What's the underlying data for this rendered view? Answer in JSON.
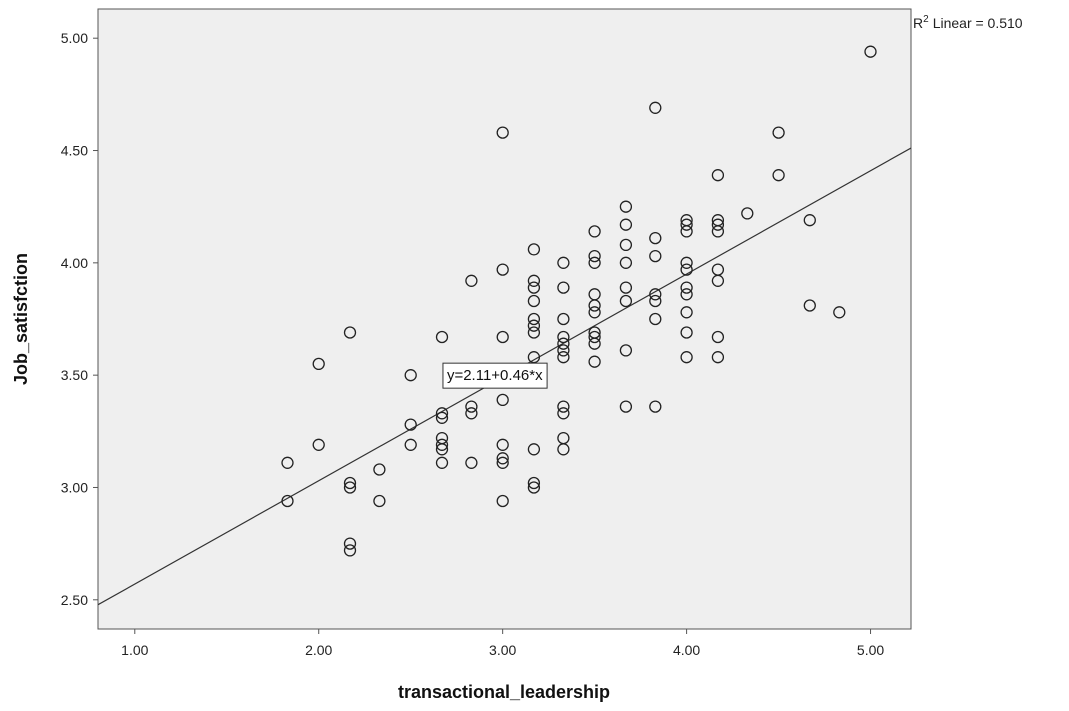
{
  "chart_data": {
    "type": "scatter",
    "title": "",
    "xlabel": "transactional_leadership",
    "ylabel": "Job_satisfction",
    "xlim": [
      0.8,
      5.22
    ],
    "ylim": [
      2.37,
      5.13
    ],
    "x_ticks": [
      1.0,
      2.0,
      3.0,
      4.0,
      5.0
    ],
    "x_tick_labels": [
      "1.00",
      "2.00",
      "3.00",
      "4.00",
      "5.00"
    ],
    "y_ticks": [
      2.5,
      3.0,
      3.5,
      4.0,
      4.5,
      5.0
    ],
    "y_tick_labels": [
      "2.50",
      "3.00",
      "3.50",
      "4.00",
      "4.50",
      "5.00"
    ],
    "grid": false,
    "legend": "none",
    "marker": "hollow-circle",
    "colors": {
      "plot_background": "#efefef",
      "marker": "#222222",
      "line": "#333333"
    },
    "fit_line": {
      "intercept": 2.11,
      "slope": 0.46,
      "equation_label": "y=2.11+0.46*x",
      "label_position": [
        2.67,
        3.5
      ]
    },
    "r_squared": {
      "sup": "2",
      "prefix": "R",
      "label": "Linear = 0.510"
    },
    "points": [
      [
        1.83,
        3.11
      ],
      [
        1.83,
        2.94
      ],
      [
        2.0,
        3.55
      ],
      [
        2.0,
        3.19
      ],
      [
        2.17,
        3.69
      ],
      [
        2.17,
        3.02
      ],
      [
        2.17,
        3.0
      ],
      [
        2.17,
        2.75
      ],
      [
        2.17,
        2.72
      ],
      [
        2.33,
        3.08
      ],
      [
        2.33,
        2.94
      ],
      [
        2.5,
        3.5
      ],
      [
        2.5,
        3.28
      ],
      [
        2.5,
        3.19
      ],
      [
        2.67,
        3.67
      ],
      [
        2.67,
        3.33
      ],
      [
        2.67,
        3.31
      ],
      [
        2.67,
        3.22
      ],
      [
        2.67,
        3.19
      ],
      [
        2.67,
        3.17
      ],
      [
        2.67,
        3.11
      ],
      [
        2.83,
        3.92
      ],
      [
        2.83,
        3.36
      ],
      [
        2.83,
        3.33
      ],
      [
        2.83,
        3.11
      ],
      [
        3.0,
        4.58
      ],
      [
        3.0,
        3.97
      ],
      [
        3.0,
        3.67
      ],
      [
        3.0,
        3.39
      ],
      [
        3.0,
        3.19
      ],
      [
        3.0,
        3.13
      ],
      [
        3.0,
        3.11
      ],
      [
        3.0,
        2.94
      ],
      [
        3.17,
        4.06
      ],
      [
        3.17,
        3.92
      ],
      [
        3.17,
        3.89
      ],
      [
        3.17,
        3.83
      ],
      [
        3.17,
        3.75
      ],
      [
        3.17,
        3.72
      ],
      [
        3.17,
        3.69
      ],
      [
        3.17,
        3.58
      ],
      [
        3.17,
        3.17
      ],
      [
        3.17,
        3.02
      ],
      [
        3.17,
        3.0
      ],
      [
        3.33,
        4.0
      ],
      [
        3.33,
        3.89
      ],
      [
        3.33,
        3.75
      ],
      [
        3.33,
        3.67
      ],
      [
        3.33,
        3.64
      ],
      [
        3.33,
        3.61
      ],
      [
        3.33,
        3.58
      ],
      [
        3.33,
        3.36
      ],
      [
        3.33,
        3.33
      ],
      [
        3.33,
        3.22
      ],
      [
        3.33,
        3.17
      ],
      [
        3.5,
        4.14
      ],
      [
        3.5,
        4.03
      ],
      [
        3.5,
        4.0
      ],
      [
        3.5,
        3.86
      ],
      [
        3.5,
        3.81
      ],
      [
        3.5,
        3.78
      ],
      [
        3.5,
        3.69
      ],
      [
        3.5,
        3.67
      ],
      [
        3.5,
        3.64
      ],
      [
        3.5,
        3.56
      ],
      [
        3.67,
        4.25
      ],
      [
        3.67,
        4.17
      ],
      [
        3.67,
        4.08
      ],
      [
        3.67,
        4.0
      ],
      [
        3.67,
        3.89
      ],
      [
        3.67,
        3.83
      ],
      [
        3.67,
        3.61
      ],
      [
        3.67,
        3.36
      ],
      [
        3.83,
        4.69
      ],
      [
        3.83,
        4.11
      ],
      [
        3.83,
        4.03
      ],
      [
        3.83,
        3.86
      ],
      [
        3.83,
        3.83
      ],
      [
        3.83,
        3.75
      ],
      [
        3.83,
        3.36
      ],
      [
        4.0,
        4.19
      ],
      [
        4.0,
        4.17
      ],
      [
        4.0,
        4.14
      ],
      [
        4.0,
        4.0
      ],
      [
        4.0,
        3.97
      ],
      [
        4.0,
        3.89
      ],
      [
        4.0,
        3.86
      ],
      [
        4.0,
        3.78
      ],
      [
        4.0,
        3.69
      ],
      [
        4.0,
        3.58
      ],
      [
        4.17,
        4.39
      ],
      [
        4.17,
        4.19
      ],
      [
        4.17,
        4.17
      ],
      [
        4.17,
        4.14
      ],
      [
        4.17,
        3.97
      ],
      [
        4.17,
        3.92
      ],
      [
        4.17,
        3.67
      ],
      [
        4.17,
        3.58
      ],
      [
        4.33,
        4.22
      ],
      [
        4.5,
        4.58
      ],
      [
        4.5,
        4.39
      ],
      [
        4.67,
        4.19
      ],
      [
        4.67,
        3.81
      ],
      [
        4.83,
        3.78
      ],
      [
        5.0,
        4.94
      ]
    ]
  }
}
